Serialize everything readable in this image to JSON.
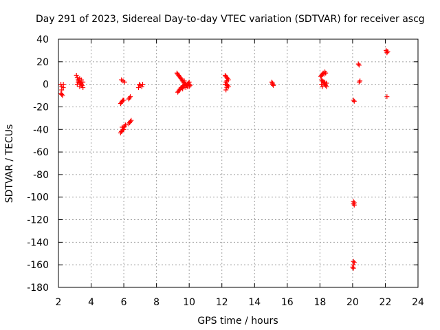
{
  "chart_data": {
    "type": "scatter",
    "title": "Day 291 of 2023, Sidereal Day-to-day VTEC variation (SDTVAR) for receiver ascg",
    "xlabel": "GPS time / hours",
    "ylabel": "SDTVAR / TECUs",
    "xlim": [
      2,
      24
    ],
    "ylim": [
      -180,
      40
    ],
    "xticks": [
      2,
      4,
      6,
      8,
      10,
      12,
      14,
      16,
      18,
      20,
      22,
      24
    ],
    "yticks": [
      40,
      20,
      0,
      -20,
      -40,
      -60,
      -80,
      -100,
      -120,
      -140,
      -160,
      -180
    ],
    "grid": true,
    "marker": "plus",
    "color": "#ff0000",
    "series": [
      {
        "name": "SDTVAR",
        "points": [
          [
            2.15,
            0
          ],
          [
            2.2,
            -2
          ],
          [
            2.2,
            -5
          ],
          [
            2.15,
            -8
          ],
          [
            2.2,
            -9
          ],
          [
            2.25,
            -10
          ],
          [
            2.3,
            -3
          ],
          [
            2.3,
            0
          ],
          [
            3.1,
            8
          ],
          [
            3.15,
            6
          ],
          [
            3.2,
            4
          ],
          [
            3.25,
            3
          ],
          [
            3.3,
            2
          ],
          [
            3.35,
            1
          ],
          [
            3.4,
            0
          ],
          [
            3.45,
            -1
          ],
          [
            3.5,
            -3
          ],
          [
            3.15,
            0
          ],
          [
            3.2,
            2
          ],
          [
            3.3,
            5
          ],
          [
            3.4,
            4
          ],
          [
            3.5,
            2
          ],
          [
            3.3,
            -2
          ],
          [
            5.85,
            4
          ],
          [
            5.95,
            3
          ],
          [
            6.05,
            2
          ],
          [
            5.8,
            -17
          ],
          [
            5.85,
            -16
          ],
          [
            5.9,
            -15
          ],
          [
            5.95,
            -14
          ],
          [
            6.0,
            -14
          ],
          [
            6.3,
            -13
          ],
          [
            6.35,
            -12
          ],
          [
            6.4,
            -11
          ],
          [
            5.8,
            -43
          ],
          [
            5.85,
            -42
          ],
          [
            5.9,
            -41
          ],
          [
            5.95,
            -40
          ],
          [
            6.0,
            -38
          ],
          [
            6.05,
            -37
          ],
          [
            6.1,
            -36
          ],
          [
            5.9,
            -38
          ],
          [
            6.0,
            -40
          ],
          [
            6.3,
            -35
          ],
          [
            6.35,
            -34
          ],
          [
            6.4,
            -33
          ],
          [
            6.45,
            -32
          ],
          [
            6.9,
            -3
          ],
          [
            7.0,
            -1
          ],
          [
            7.1,
            -2
          ],
          [
            7.15,
            0
          ],
          [
            6.95,
            0
          ],
          [
            9.25,
            10
          ],
          [
            9.3,
            9
          ],
          [
            9.35,
            8
          ],
          [
            9.4,
            7
          ],
          [
            9.45,
            6
          ],
          [
            9.5,
            5
          ],
          [
            9.55,
            4
          ],
          [
            9.6,
            3
          ],
          [
            9.65,
            2
          ],
          [
            9.7,
            1
          ],
          [
            9.75,
            0
          ],
          [
            9.8,
            0
          ],
          [
            9.85,
            -1
          ],
          [
            9.9,
            0
          ],
          [
            9.95,
            1
          ],
          [
            10.0,
            0
          ],
          [
            10.05,
            -1
          ],
          [
            9.3,
            -7
          ],
          [
            9.35,
            -6
          ],
          [
            9.4,
            -5
          ],
          [
            9.45,
            -4
          ],
          [
            9.5,
            -3
          ],
          [
            9.55,
            -3
          ],
          [
            9.6,
            -2
          ],
          [
            9.65,
            -2
          ],
          [
            9.7,
            -1
          ],
          [
            9.8,
            -3
          ],
          [
            9.9,
            -2
          ],
          [
            10.0,
            2
          ],
          [
            9.7,
            3
          ],
          [
            9.6,
            -4
          ],
          [
            10.0,
            -2
          ],
          [
            12.2,
            8
          ],
          [
            12.25,
            7
          ],
          [
            12.3,
            6
          ],
          [
            12.35,
            5
          ],
          [
            12.3,
            3
          ],
          [
            12.25,
            2
          ],
          [
            12.3,
            0
          ],
          [
            12.35,
            -1
          ],
          [
            12.3,
            -3
          ],
          [
            12.25,
            -5
          ],
          [
            12.4,
            -2
          ],
          [
            12.4,
            4
          ],
          [
            12.2,
            0
          ],
          [
            15.05,
            2
          ],
          [
            15.1,
            0
          ],
          [
            15.15,
            -1
          ],
          [
            15.1,
            1
          ],
          [
            18.05,
            7
          ],
          [
            18.1,
            8
          ],
          [
            18.15,
            9
          ],
          [
            18.2,
            10
          ],
          [
            18.25,
            9
          ],
          [
            18.3,
            11
          ],
          [
            18.35,
            10
          ],
          [
            18.1,
            4
          ],
          [
            18.15,
            3
          ],
          [
            18.2,
            2
          ],
          [
            18.25,
            1
          ],
          [
            18.3,
            0
          ],
          [
            18.35,
            -1
          ],
          [
            18.4,
            -2
          ],
          [
            18.1,
            0
          ],
          [
            18.15,
            -2
          ],
          [
            18.3,
            2
          ],
          [
            18.4,
            1
          ],
          [
            20.05,
            -14
          ],
          [
            20.1,
            -15
          ],
          [
            20.05,
            -104
          ],
          [
            20.1,
            -105
          ],
          [
            20.05,
            -106
          ],
          [
            20.1,
            -107
          ],
          [
            20.05,
            -157
          ],
          [
            20.1,
            -158
          ],
          [
            20.05,
            -160
          ],
          [
            20.0,
            -162
          ],
          [
            20.05,
            -163
          ],
          [
            20.35,
            18
          ],
          [
            20.4,
            17
          ],
          [
            20.4,
            2
          ],
          [
            20.45,
            3
          ],
          [
            22.05,
            30
          ],
          [
            22.1,
            29
          ],
          [
            22.1,
            28
          ],
          [
            22.15,
            29
          ],
          [
            22.1,
            -11
          ]
        ]
      }
    ]
  }
}
